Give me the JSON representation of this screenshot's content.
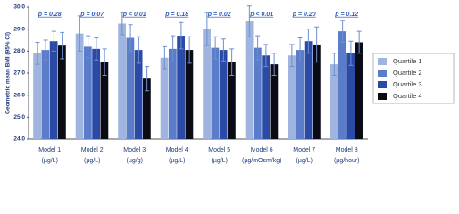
{
  "chart_data": {
    "type": "bar",
    "y_label": "Geometric mean BMI (95% CI)",
    "categories": [
      "Model 1",
      "Model 2",
      "Model 3",
      "Model 4",
      "Model 5",
      "Model 6",
      "Model 7",
      "Model 8"
    ],
    "category_units": [
      "(µg/L)",
      "(µg/L)",
      "(µg/g)",
      "(µg/L)",
      "(µg/L)",
      "(µg/mOsm/kg)",
      "(µg/L)",
      "(µg/hour)"
    ],
    "annotations": [
      "p = 0.28",
      "p = 0.07",
      "p < 0.01",
      "p = 0.18",
      "p = 0.02",
      "p < 0.01",
      "p = 0.20",
      "p = 0.12"
    ],
    "series": [
      {
        "name": "Quartile 1",
        "color": "#9fb4de",
        "values": [
          27.9,
          28.8,
          29.25,
          27.7,
          29.0,
          29.35,
          27.8,
          27.4
        ],
        "errors": [
          0.5,
          0.8,
          0.5,
          0.5,
          0.75,
          0.7,
          0.5,
          0.5
        ]
      },
      {
        "name": "Quartile 2",
        "color": "#5a7cc9",
        "values": [
          28.05,
          28.2,
          28.6,
          28.1,
          28.15,
          28.15,
          28.05,
          28.9
        ],
        "errors": [
          0.45,
          0.5,
          0.6,
          0.6,
          0.5,
          0.55,
          0.55,
          0.5
        ]
      },
      {
        "name": "Quartile 3",
        "color": "#2a4aa6",
        "values": [
          28.45,
          28.1,
          28.05,
          28.7,
          28.05,
          27.8,
          28.45,
          27.9
        ],
        "errors": [
          0.45,
          0.5,
          0.6,
          0.6,
          0.5,
          0.5,
          0.55,
          0.55
        ]
      },
      {
        "name": "Quartile 4",
        "color": "#0b0b16",
        "values": [
          28.25,
          27.5,
          26.75,
          28.05,
          27.5,
          27.4,
          28.3,
          28.4
        ],
        "errors": [
          0.6,
          0.6,
          0.55,
          0.6,
          0.6,
          0.5,
          0.8,
          0.5
        ]
      }
    ],
    "ylim": [
      24,
      30
    ],
    "yticks": [
      {
        "value": 24,
        "label": "24.0"
      },
      {
        "value": 25,
        "label": "25.0"
      },
      {
        "value": 26,
        "label": "26.0"
      },
      {
        "value": 27,
        "label": "27.0"
      },
      {
        "value": 28,
        "label": "28.0"
      },
      {
        "value": 29,
        "label": "29.0"
      },
      {
        "value": 30,
        "label": "30.0"
      }
    ],
    "legend": "right"
  }
}
